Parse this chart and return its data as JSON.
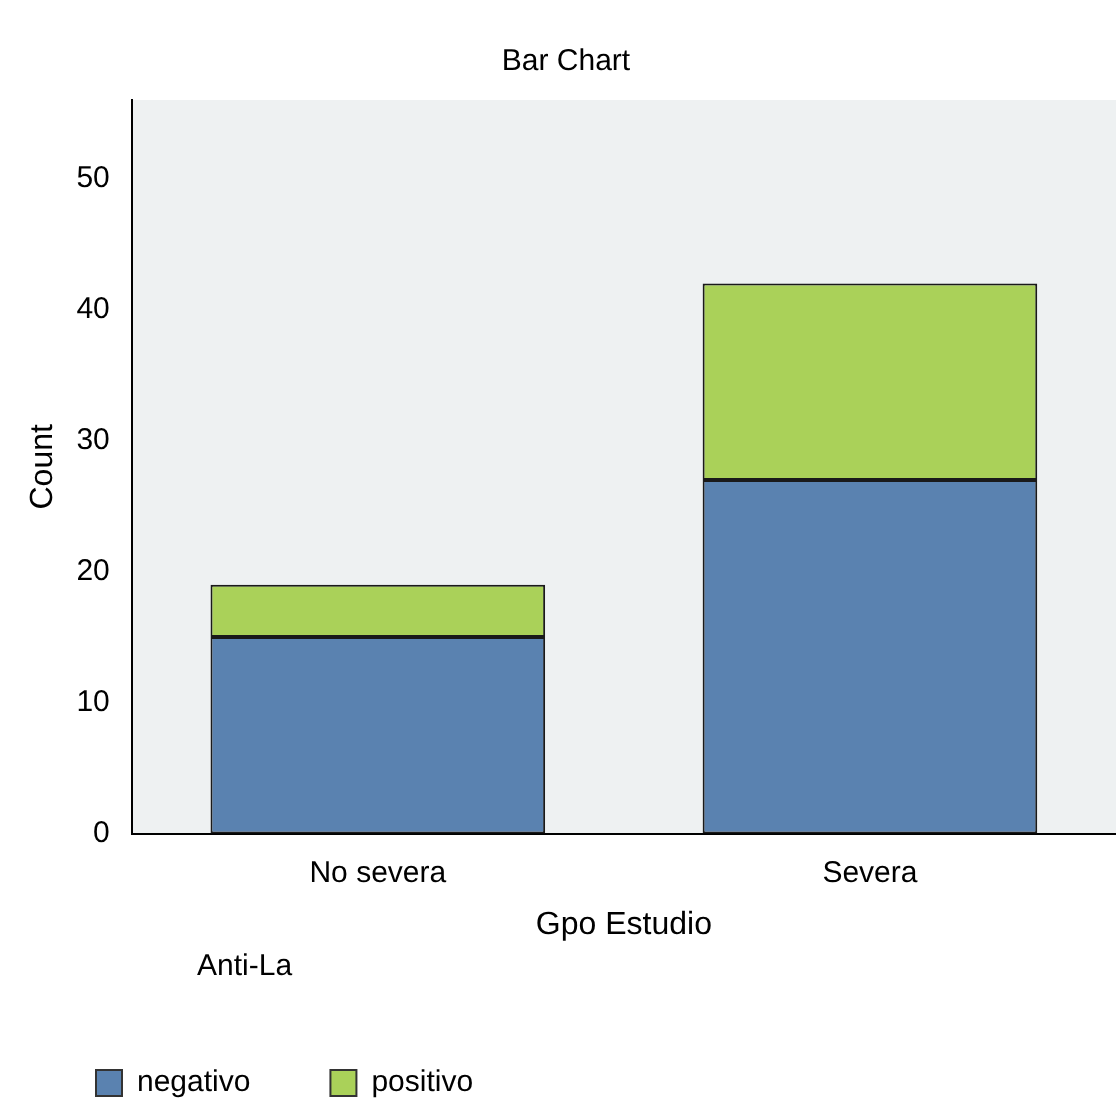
{
  "chart_data": {
    "type": "bar",
    "title": "Bar Chart",
    "xlabel": "Gpo Estudio",
    "ylabel": "Count",
    "legend_title": "Anti-La",
    "categories": [
      "No severa",
      "Severa"
    ],
    "series": [
      {
        "name": "negativo",
        "color": "#5a82b0",
        "values": [
          15,
          27
        ]
      },
      {
        "name": "positivo",
        "color": "#aad159",
        "values": [
          4,
          15
        ]
      }
    ],
    "stacked": true,
    "ylim": [
      0,
      56
    ],
    "yticks": [
      0,
      10,
      20,
      30,
      40,
      50
    ],
    "grid": false,
    "legend": "bottom left"
  }
}
